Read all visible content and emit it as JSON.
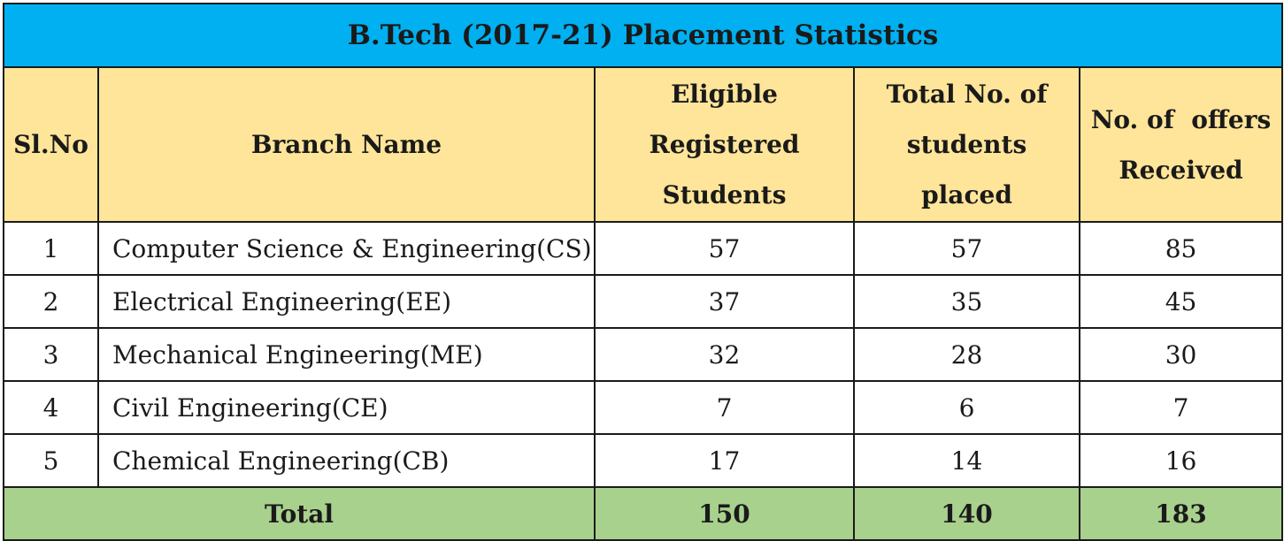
{
  "title": "B.Tech (2017-21) Placement Statistics",
  "headers": {
    "sl_no": "Sl.No",
    "branch": "Branch Name",
    "eligible": [
      "Eligible",
      "Registered",
      "Students"
    ],
    "placed": [
      "Total No. of",
      "students",
      "placed"
    ],
    "offers": [
      "No. of  offers",
      "Received"
    ]
  },
  "rows": [
    {
      "sl": "1",
      "branch": "Computer Science & Engineering(CS)",
      "eligible": "57",
      "placed": "57",
      "offers": "85"
    },
    {
      "sl": "2",
      "branch": "Electrical Engineering(EE)",
      "eligible": "37",
      "placed": "35",
      "offers": "45"
    },
    {
      "sl": "3",
      "branch": "Mechanical Engineering(ME)",
      "eligible": "32",
      "placed": "28",
      "offers": "30"
    },
    {
      "sl": "4",
      "branch": "Civil Engineering(CE)",
      "eligible": "7",
      "placed": "6",
      "offers": "7"
    },
    {
      "sl": "5",
      "branch": "Chemical Engineering(CB)",
      "eligible": "17",
      "placed": "14",
      "offers": "16"
    }
  ],
  "total": {
    "label": "Total",
    "eligible": "150",
    "placed": "140",
    "offers": "183"
  },
  "colors": {
    "title_bg": "#00b0f0",
    "header_bg": "#ffe599",
    "total_bg": "#a9d18e"
  }
}
